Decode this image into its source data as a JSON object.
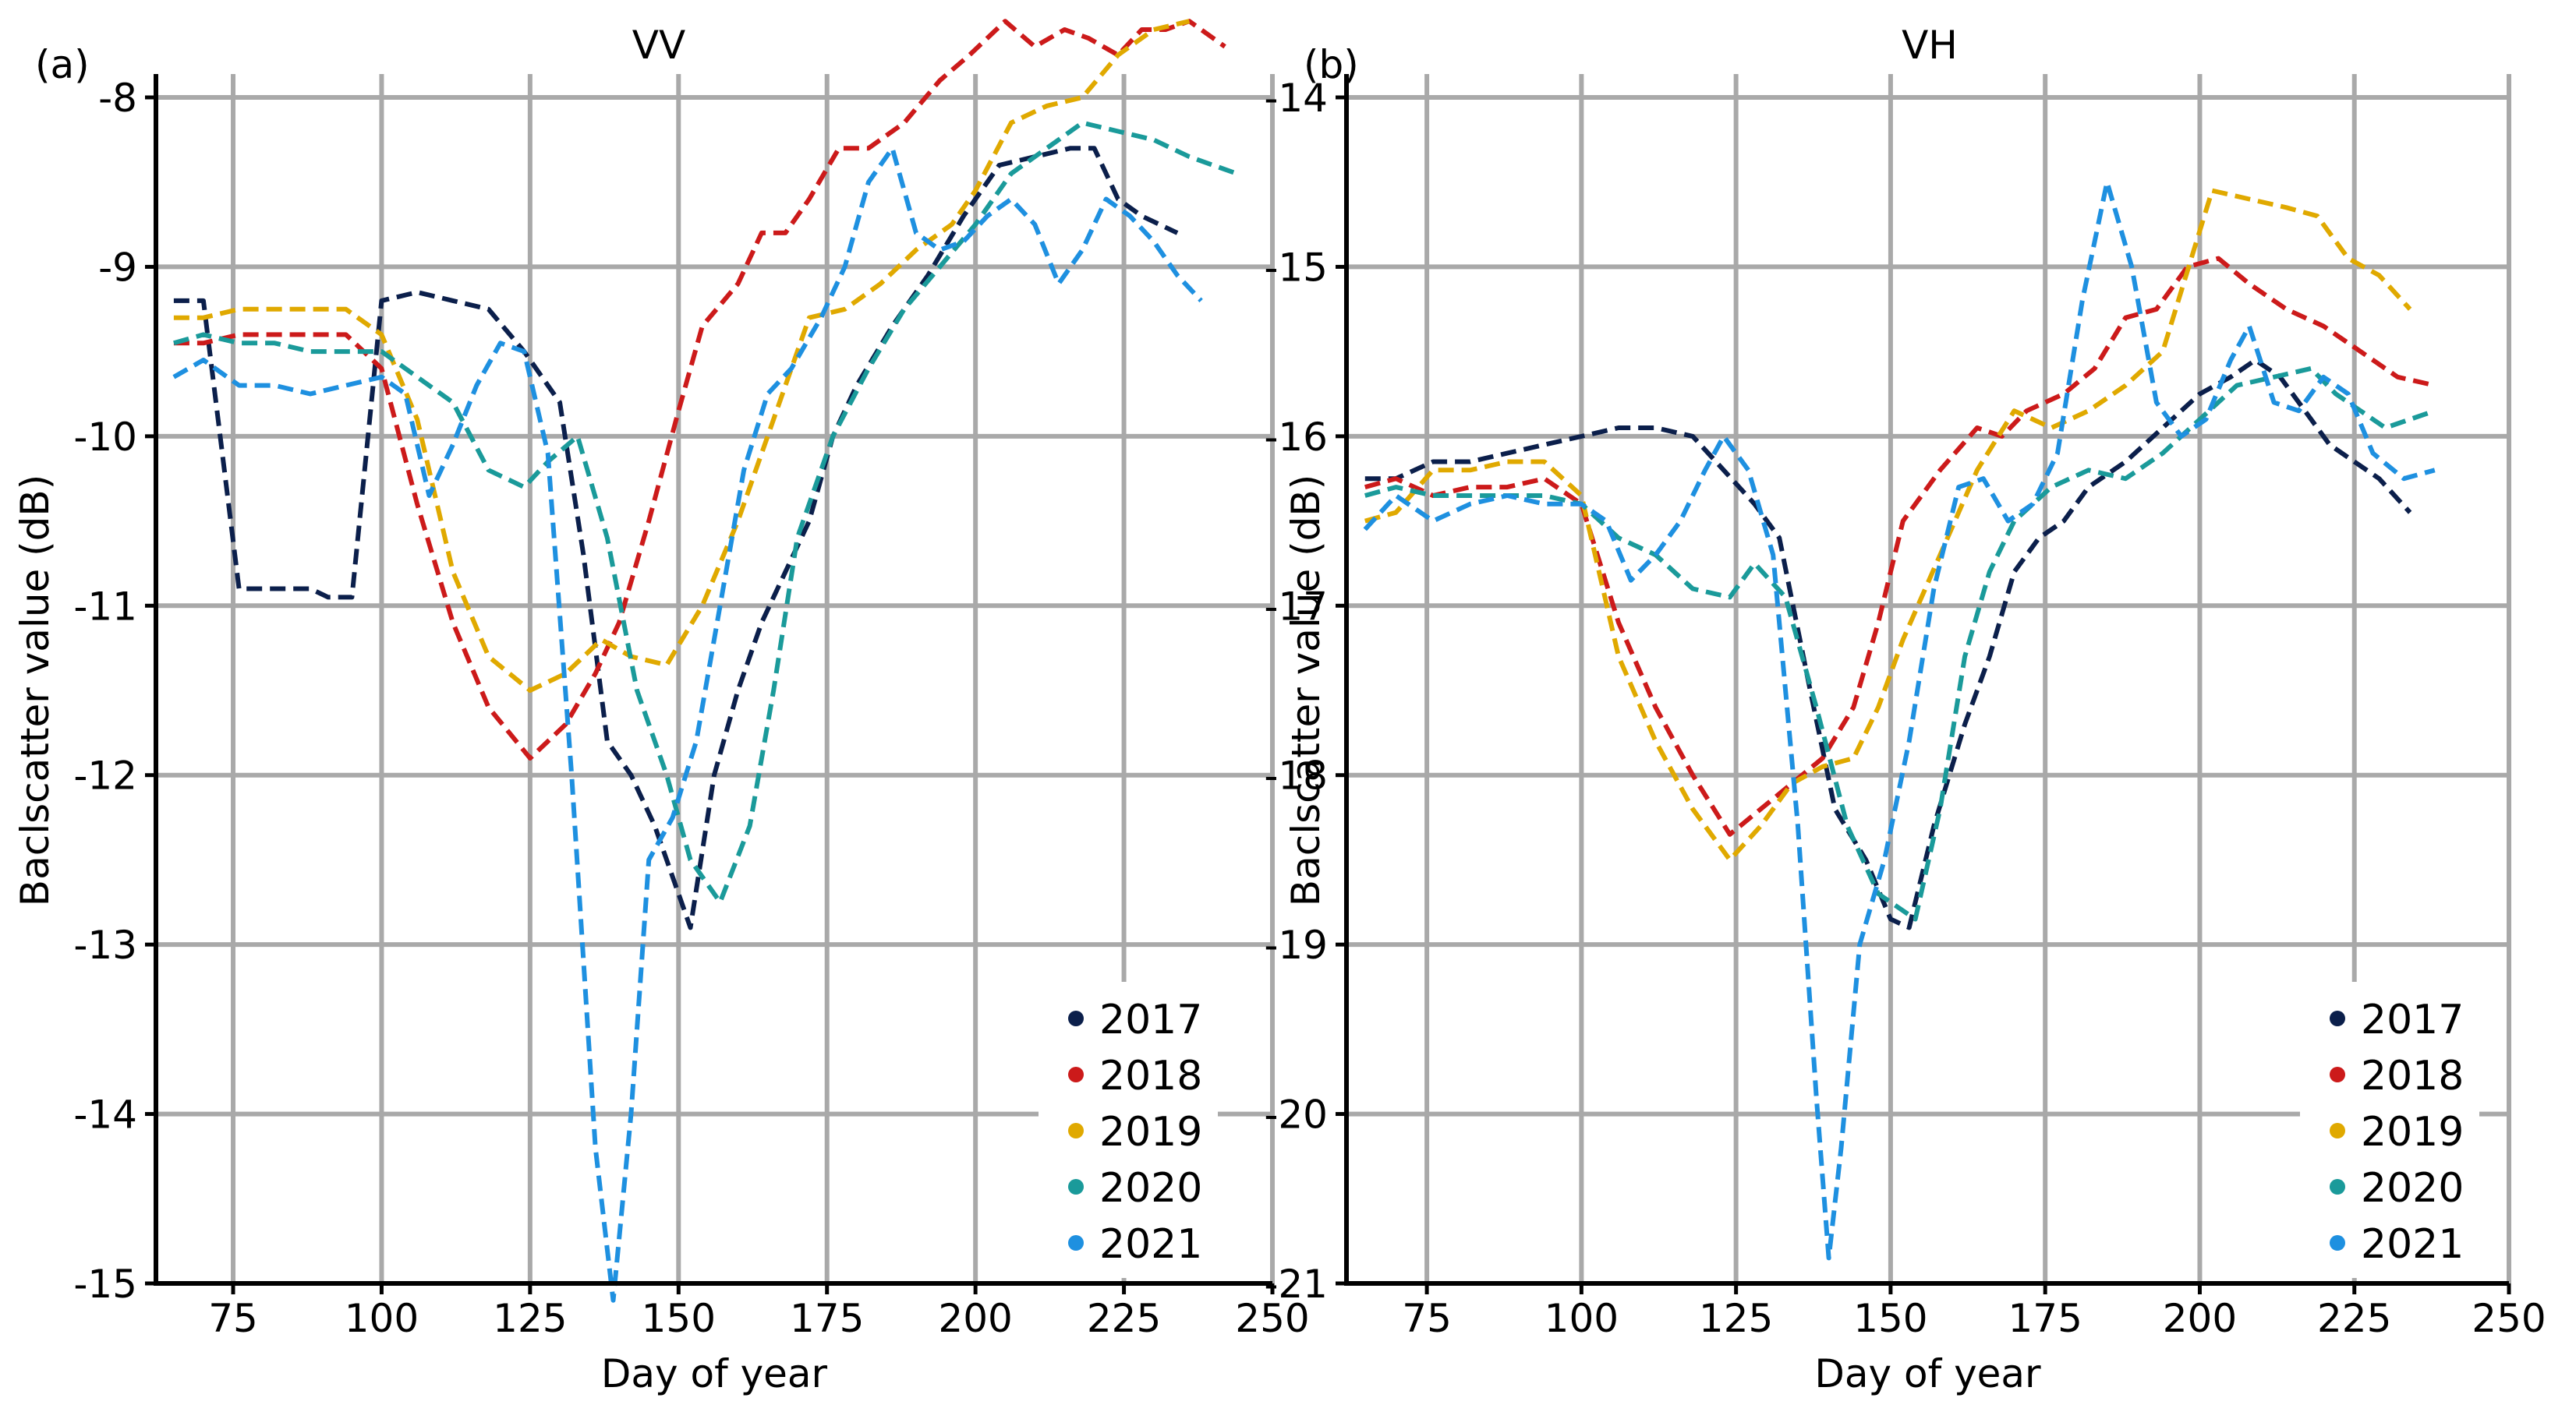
{
  "chart_data": [
    {
      "type": "line",
      "panel_label": "(a)",
      "title": "VV",
      "xlabel": "Day of year",
      "ylabel": "Baclscatter value (dB)",
      "xlim": [
        62,
        250
      ],
      "ylim": [
        -15,
        -8
      ],
      "xticks": [
        75,
        100,
        125,
        150,
        175,
        200,
        225,
        250
      ],
      "xtick_labels": [
        "75",
        "100",
        "125",
        "150",
        "175",
        "200",
        "225",
        "250"
      ],
      "yticks": [
        -15,
        -14,
        -13,
        -12,
        -11,
        -10,
        -9,
        -8
      ],
      "ytick_labels": [
        "-15",
        "-14",
        "-13",
        "-12",
        "-11",
        "-10",
        "-9",
        "-8"
      ],
      "grid": true,
      "legend_position": "bottom-right",
      "series": [
        {
          "name": "2017",
          "color": "#0b1f4b",
          "x": [
            65,
            70,
            76,
            81,
            88,
            91,
            95,
            100,
            106,
            112,
            118,
            124,
            130,
            134,
            138,
            142,
            146,
            152,
            156,
            160,
            164,
            168,
            172,
            176,
            180,
            186,
            192,
            198,
            204,
            210,
            216,
            220,
            224,
            228,
            234
          ],
          "y": [
            -9.2,
            -9.2,
            -10.9,
            -10.9,
            -10.9,
            -10.95,
            -10.95,
            -9.2,
            -9.15,
            -9.2,
            -9.25,
            -9.5,
            -9.8,
            -10.7,
            -11.8,
            -12.0,
            -12.3,
            -12.9,
            -12.0,
            -11.5,
            -11.1,
            -10.8,
            -10.5,
            -10.0,
            -9.7,
            -9.35,
            -9.05,
            -8.7,
            -8.4,
            -8.35,
            -8.3,
            -8.3,
            -8.6,
            -8.7,
            -8.8
          ]
        },
        {
          "name": "2018",
          "color": "#cc1a1a",
          "x": [
            65,
            70,
            76,
            82,
            88,
            94,
            100,
            106,
            112,
            118,
            125,
            131,
            136,
            140,
            145,
            150,
            154,
            160,
            164,
            168,
            172,
            177,
            182,
            188,
            194,
            199,
            205,
            210,
            215,
            219,
            224,
            228,
            232,
            236,
            242
          ],
          "y": [
            -9.45,
            -9.45,
            -9.4,
            -9.4,
            -9.4,
            -9.4,
            -9.6,
            -10.4,
            -11.1,
            -11.6,
            -11.9,
            -11.7,
            -11.4,
            -11.1,
            -10.5,
            -9.85,
            -9.35,
            -9.1,
            -8.8,
            -8.8,
            -8.6,
            -8.3,
            -8.3,
            -8.15,
            -7.9,
            -7.75,
            -7.55,
            -7.7,
            -7.6,
            -7.65,
            -7.75,
            -7.6,
            -7.6,
            -7.55,
            -7.7
          ]
        },
        {
          "name": "2019",
          "color": "#e0a900",
          "x": [
            65,
            70,
            76,
            82,
            88,
            94,
            100,
            106,
            112,
            118,
            125,
            131,
            137,
            142,
            148,
            154,
            160,
            166,
            172,
            178,
            184,
            190,
            196,
            200,
            206,
            212,
            218,
            224,
            230,
            236
          ],
          "y": [
            -9.3,
            -9.3,
            -9.25,
            -9.25,
            -9.25,
            -9.25,
            -9.4,
            -9.9,
            -10.8,
            -11.3,
            -11.5,
            -11.4,
            -11.2,
            -11.3,
            -11.35,
            -11.0,
            -10.5,
            -9.9,
            -9.3,
            -9.25,
            -9.1,
            -8.9,
            -8.75,
            -8.55,
            -8.15,
            -8.05,
            -8.0,
            -7.75,
            -7.6,
            -7.55
          ]
        },
        {
          "name": "2020",
          "color": "#1a9a9a",
          "x": [
            65,
            70,
            76,
            82,
            88,
            94,
            100,
            106,
            112,
            118,
            124,
            128,
            133,
            138,
            143,
            148,
            152,
            157,
            162,
            166,
            170,
            176,
            182,
            188,
            194,
            200,
            206,
            212,
            218,
            224,
            230,
            236,
            244
          ],
          "y": [
            -9.45,
            -9.4,
            -9.45,
            -9.45,
            -9.5,
            -9.5,
            -9.5,
            -9.65,
            -9.8,
            -10.2,
            -10.3,
            -10.15,
            -10.0,
            -10.6,
            -11.5,
            -12.0,
            -12.5,
            -12.75,
            -12.3,
            -11.5,
            -10.6,
            -10.0,
            -9.6,
            -9.25,
            -9.0,
            -8.75,
            -8.45,
            -8.3,
            -8.15,
            -8.2,
            -8.25,
            -8.35,
            -8.45
          ]
        },
        {
          "name": "2021",
          "color": "#1e90e0",
          "x": [
            65,
            70,
            76,
            82,
            88,
            94,
            100,
            104,
            108,
            112,
            116,
            120,
            124,
            128,
            132,
            136,
            139,
            142,
            145,
            149,
            153,
            157,
            161,
            165,
            169,
            174,
            178,
            182,
            186,
            190,
            194,
            198,
            202,
            206,
            210,
            214,
            218,
            222,
            226,
            230,
            234,
            238
          ],
          "y": [
            -9.65,
            -9.55,
            -9.7,
            -9.7,
            -9.75,
            -9.7,
            -9.65,
            -9.75,
            -10.35,
            -10.05,
            -9.7,
            -9.45,
            -9.5,
            -10.1,
            -12.0,
            -14.2,
            -15.1,
            -14.0,
            -12.5,
            -12.25,
            -11.8,
            -11.0,
            -10.2,
            -9.75,
            -9.6,
            -9.3,
            -9.0,
            -8.5,
            -8.3,
            -8.8,
            -8.9,
            -8.85,
            -8.7,
            -8.6,
            -8.75,
            -9.1,
            -8.9,
            -8.6,
            -8.7,
            -8.85,
            -9.05,
            -9.2
          ]
        }
      ]
    },
    {
      "type": "line",
      "panel_label": "(b)",
      "title": "VH",
      "xlabel": "Day of year",
      "ylabel": "Baclscatter value (dB)",
      "xlim": [
        62,
        250
      ],
      "ylim": [
        -21,
        -14
      ],
      "xticks": [
        75,
        100,
        125,
        150,
        175,
        200,
        225,
        250
      ],
      "xtick_labels": [
        "75",
        "100",
        "125",
        "150",
        "175",
        "200",
        "225",
        "250"
      ],
      "yticks": [
        -21,
        -20,
        -19,
        -18,
        -17,
        -16,
        -15,
        -14
      ],
      "ytick_labels": [
        "-21",
        "-20",
        "-19",
        "-18",
        "-17",
        "-16",
        "-15",
        "-14"
      ],
      "grid": true,
      "legend_position": "bottom-right",
      "series": [
        {
          "name": "2017",
          "color": "#0b1f4b",
          "x": [
            65,
            70,
            76,
            82,
            88,
            94,
            100,
            106,
            112,
            118,
            123,
            128,
            132,
            137,
            141,
            146,
            150,
            153,
            157,
            162,
            166,
            170,
            174,
            178,
            182,
            188,
            194,
            200,
            205,
            209,
            213,
            217,
            221,
            225,
            229,
            234
          ],
          "y": [
            -16.25,
            -16.25,
            -16.15,
            -16.15,
            -16.1,
            -16.05,
            -16.0,
            -15.95,
            -15.95,
            -16.0,
            -16.2,
            -16.4,
            -16.6,
            -17.5,
            -18.2,
            -18.5,
            -18.85,
            -18.9,
            -18.3,
            -17.7,
            -17.3,
            -16.8,
            -16.6,
            -16.5,
            -16.3,
            -16.15,
            -15.95,
            -15.75,
            -15.65,
            -15.55,
            -15.65,
            -15.85,
            -16.05,
            -16.15,
            -16.25,
            -16.45
          ]
        },
        {
          "name": "2018",
          "color": "#cc1a1a",
          "x": [
            65,
            70,
            76,
            82,
            88,
            94,
            100,
            106,
            112,
            118,
            124,
            129,
            134,
            139,
            144,
            148,
            152,
            158,
            164,
            168,
            172,
            178,
            183,
            188,
            193,
            198,
            203,
            208,
            214,
            220,
            226,
            232,
            238
          ],
          "y": [
            -16.3,
            -16.25,
            -16.35,
            -16.3,
            -16.3,
            -16.25,
            -16.4,
            -17.1,
            -17.6,
            -18.0,
            -18.35,
            -18.2,
            -18.05,
            -17.9,
            -17.6,
            -17.1,
            -16.5,
            -16.2,
            -15.95,
            -16.0,
            -15.85,
            -15.75,
            -15.6,
            -15.3,
            -15.25,
            -15.0,
            -14.95,
            -15.1,
            -15.25,
            -15.35,
            -15.5,
            -15.65,
            -15.7
          ]
        },
        {
          "name": "2019",
          "color": "#e0a900",
          "x": [
            65,
            70,
            76,
            82,
            88,
            94,
            100,
            106,
            112,
            118,
            124,
            129,
            134,
            139,
            144,
            148,
            152,
            158,
            164,
            170,
            176,
            182,
            188,
            194,
            202,
            208,
            214,
            219,
            224,
            229,
            234
          ],
          "y": [
            -16.5,
            -16.45,
            -16.2,
            -16.2,
            -16.15,
            -16.15,
            -16.35,
            -17.3,
            -17.8,
            -18.2,
            -18.5,
            -18.3,
            -18.05,
            -17.95,
            -17.9,
            -17.6,
            -17.2,
            -16.7,
            -16.2,
            -15.85,
            -15.95,
            -15.85,
            -15.7,
            -15.5,
            -14.55,
            -14.6,
            -14.65,
            -14.7,
            -14.95,
            -15.05,
            -15.25
          ]
        },
        {
          "name": "2020",
          "color": "#1a9a9a",
          "x": [
            65,
            70,
            76,
            82,
            88,
            94,
            100,
            106,
            112,
            118,
            124,
            128,
            133,
            138,
            143,
            148,
            154,
            158,
            162,
            166,
            170,
            176,
            182,
            188,
            194,
            200,
            206,
            212,
            218,
            222,
            226,
            230,
            234,
            238
          ],
          "y": [
            -16.35,
            -16.3,
            -16.35,
            -16.35,
            -16.35,
            -16.35,
            -16.4,
            -16.6,
            -16.7,
            -16.9,
            -16.95,
            -16.75,
            -16.95,
            -17.6,
            -18.3,
            -18.7,
            -18.85,
            -18.2,
            -17.3,
            -16.8,
            -16.5,
            -16.3,
            -16.2,
            -16.25,
            -16.1,
            -15.9,
            -15.7,
            -15.65,
            -15.6,
            -15.75,
            -15.85,
            -15.95,
            -15.9,
            -15.85
          ]
        },
        {
          "name": "2021",
          "color": "#1e90e0",
          "x": [
            65,
            70,
            76,
            82,
            88,
            94,
            100,
            104,
            108,
            112,
            116,
            120,
            123,
            127,
            131,
            135,
            138,
            140,
            142,
            145,
            149,
            153,
            157,
            161,
            165,
            169,
            173,
            177,
            181,
            185,
            189,
            193,
            197,
            201,
            205,
            208,
            212,
            216,
            220,
            224,
            228,
            233,
            238
          ],
          "y": [
            -16.55,
            -16.35,
            -16.5,
            -16.4,
            -16.35,
            -16.4,
            -16.4,
            -16.5,
            -16.85,
            -16.7,
            -16.5,
            -16.2,
            -16.0,
            -16.2,
            -16.7,
            -18.3,
            -19.9,
            -20.85,
            -20.2,
            -19.0,
            -18.5,
            -17.8,
            -16.9,
            -16.3,
            -16.25,
            -16.5,
            -16.4,
            -16.1,
            -15.2,
            -14.5,
            -15.0,
            -15.8,
            -16.0,
            -15.9,
            -15.55,
            -15.35,
            -15.8,
            -15.85,
            -15.65,
            -15.75,
            -16.1,
            -16.25,
            -16.2
          ]
        }
      ]
    }
  ]
}
